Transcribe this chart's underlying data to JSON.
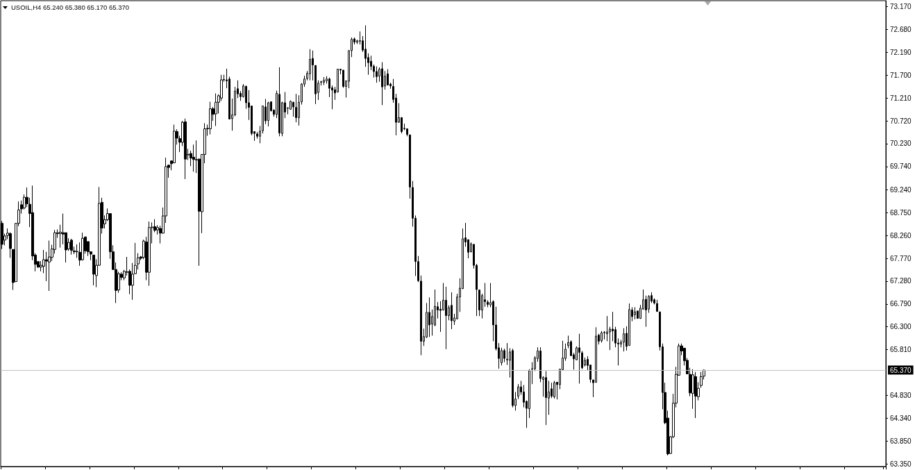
{
  "chart_data": {
    "type": "candlestick",
    "title": "USOIL,H4 65.240 65.380 65.170 65.370",
    "color": "#000000",
    "tick_labels": "y",
    "categories": [
      null,
      null,
      null,
      null,
      null,
      null,
      null,
      null,
      null,
      null,
      null,
      null,
      null,
      null,
      null,
      null,
      null,
      null,
      null,
      null,
      null,
      null,
      null,
      null,
      null,
      null,
      null,
      null,
      null,
      null,
      null,
      null,
      null,
      null,
      null,
      null,
      null,
      null,
      null,
      null,
      null,
      null,
      null,
      null,
      null,
      null,
      null,
      null,
      null,
      null,
      null,
      null,
      null,
      null,
      null,
      null,
      null,
      null,
      null,
      null,
      null,
      null,
      null,
      null,
      null,
      null,
      null,
      null,
      null,
      null,
      null,
      null,
      null,
      null,
      null,
      null,
      null,
      null,
      null,
      null,
      null,
      null,
      null,
      null,
      null,
      null,
      null,
      null,
      null,
      null,
      null,
      null,
      null,
      null,
      null,
      null,
      null,
      null,
      null,
      null,
      null,
      null,
      null,
      null,
      null,
      null,
      null,
      null,
      null,
      null,
      null,
      null,
      null,
      null,
      null,
      null,
      null,
      null,
      null,
      null,
      null,
      null,
      null,
      null,
      null,
      null,
      null,
      null,
      null,
      null,
      null,
      null,
      null,
      null,
      null,
      null,
      null,
      null,
      null,
      null,
      null,
      null,
      null,
      null,
      null,
      null,
      null,
      null,
      null,
      null,
      null,
      null,
      null,
      null,
      null,
      null,
      null,
      null,
      null,
      null,
      null,
      null,
      null,
      null,
      null,
      null,
      null,
      null,
      null,
      null,
      null,
      null,
      null,
      null,
      null,
      null,
      null,
      null,
      null,
      null,
      null,
      null,
      null,
      null,
      null,
      null,
      null,
      null,
      null,
      null,
      null,
      null,
      null,
      null,
      null,
      null,
      null,
      null,
      null,
      null,
      null,
      null,
      null,
      null,
      null,
      null,
      null,
      null,
      null,
      null,
      null,
      null,
      null,
      null,
      null,
      null,
      null,
      null,
      null,
      null,
      null,
      null,
      null,
      null,
      null,
      null,
      null,
      null,
      null,
      null,
      null,
      null,
      null,
      null,
      null,
      null,
      null,
      null,
      null,
      null,
      null,
      null,
      null,
      null,
      null,
      null,
      null,
      null,
      null,
      null,
      null,
      null,
      null,
      null,
      null,
      null,
      null,
      null,
      null,
      null,
      null,
      null,
      null,
      null,
      null,
      null,
      null,
      null,
      null,
      null,
      null,
      null,
      null,
      null,
      null,
      null,
      null,
      null,
      null,
      null,
      null,
      null,
      null,
      null,
      null,
      null,
      null,
      null,
      null,
      null,
      null,
      null,
      null,
      null,
      null,
      null,
      null,
      null,
      null,
      null,
      null,
      null,
      null,
      null,
      null,
      null,
      null,
      null,
      null,
      null,
      null,
      null,
      null,
      null,
      null,
      null,
      null,
      null,
      null
    ],
    "ohlc": [
      [
        68.52,
        68.57,
        67.97,
        68.07
      ],
      [
        68.16,
        68.3,
        68.05,
        68.25
      ],
      [
        68.26,
        68.41,
        68.18,
        68.31
      ],
      [
        68.3,
        68.33,
        67.78,
        67.98
      ],
      [
        67.96,
        67.96,
        67.09,
        67.25
      ],
      [
        67.27,
        68.53,
        67.26,
        68.52
      ],
      [
        68.52,
        68.99,
        68.46,
        68.81
      ],
      [
        68.92,
        69.01,
        68.73,
        68.83
      ],
      [
        68.85,
        69.14,
        68.82,
        69.08
      ],
      [
        69.08,
        69.29,
        68.87,
        68.94
      ],
      [
        68.93,
        69.07,
        68.44,
        68.73
      ],
      [
        68.75,
        69.33,
        67.73,
        67.82
      ],
      [
        67.84,
        67.88,
        67.49,
        67.64
      ],
      [
        67.7,
        67.7,
        67.57,
        67.58
      ],
      [
        67.58,
        67.71,
        67.49,
        67.62
      ],
      [
        67.6,
        67.95,
        67.45,
        67.74
      ],
      [
        67.74,
        67.91,
        67.28,
        67.71
      ],
      [
        67.69,
        68.15,
        67.07,
        67.8
      ],
      [
        67.79,
        68.06,
        67.71,
        67.97
      ],
      [
        67.96,
        68.38,
        67.87,
        68.32
      ],
      [
        68.3,
        68.39,
        68.21,
        68.32
      ],
      [
        68.3,
        68.49,
        68.0,
        68.33
      ],
      [
        68.32,
        68.73,
        68.07,
        68.29
      ],
      [
        68.32,
        68.32,
        67.68,
        67.95
      ],
      [
        67.97,
        68.2,
        67.93,
        68.11
      ],
      [
        68.16,
        68.19,
        67.85,
        67.94
      ],
      [
        67.93,
        68.02,
        67.86,
        67.91
      ],
      [
        67.91,
        68.07,
        67.78,
        67.92
      ],
      [
        67.9,
        68.11,
        67.61,
        67.73
      ],
      [
        67.74,
        68.32,
        67.72,
        68.2
      ],
      [
        68.23,
        68.23,
        67.87,
        67.93
      ],
      [
        68.13,
        68.13,
        67.82,
        67.91
      ],
      [
        67.91,
        67.92,
        67.73,
        67.86
      ],
      [
        67.84,
        67.84,
        67.19,
        67.43
      ],
      [
        67.4,
        67.75,
        67.15,
        67.62
      ],
      [
        67.62,
        69.3,
        67.61,
        68.95
      ],
      [
        68.97,
        69.07,
        68.3,
        68.42
      ],
      [
        68.51,
        68.69,
        68.41,
        68.6
      ],
      [
        68.6,
        68.84,
        68.57,
        68.73
      ],
      [
        68.73,
        68.73,
        67.76,
        67.91
      ],
      [
        67.91,
        68.05,
        67.52,
        67.53
      ],
      [
        67.53,
        67.68,
        66.81,
        67.08
      ],
      [
        67.09,
        67.48,
        67.03,
        67.44
      ],
      [
        67.43,
        67.47,
        67.3,
        67.36
      ],
      [
        67.35,
        67.52,
        67.3,
        67.49
      ],
      [
        67.47,
        67.8,
        67.4,
        67.48
      ],
      [
        67.49,
        67.53,
        67.0,
        67.19
      ],
      [
        67.19,
        67.67,
        66.88,
        67.43
      ],
      [
        67.44,
        68.1,
        67.43,
        67.62
      ],
      [
        67.65,
        67.88,
        67.53,
        67.78
      ],
      [
        67.8,
        67.82,
        67.73,
        67.77
      ],
      [
        67.79,
        68.17,
        67.75,
        68.14
      ],
      [
        68.12,
        68.23,
        67.3,
        67.47
      ],
      [
        67.47,
        68.56,
        67.18,
        68.43
      ],
      [
        68.43,
        68.54,
        68.09,
        68.44
      ],
      [
        68.45,
        68.61,
        68.33,
        68.37
      ],
      [
        68.38,
        68.48,
        68.28,
        68.43
      ],
      [
        68.41,
        68.47,
        68.09,
        68.31
      ],
      [
        68.31,
        68.86,
        68.3,
        68.68
      ],
      [
        68.68,
        69.93,
        68.53,
        69.74
      ],
      [
        69.77,
        69.78,
        69.5,
        69.72
      ],
      [
        69.86,
        69.87,
        69.66,
        69.8
      ],
      [
        69.82,
        70.64,
        69.81,
        70.5
      ],
      [
        70.49,
        70.54,
        70.21,
        70.35
      ],
      [
        70.34,
        70.4,
        70.05,
        70.26
      ],
      [
        70.26,
        70.72,
        70.18,
        70.69
      ],
      [
        70.7,
        70.77,
        69.47,
        69.9
      ],
      [
        69.99,
        70.12,
        69.88,
        70.0
      ],
      [
        70.02,
        70.08,
        69.75,
        69.92
      ],
      [
        69.94,
        70.21,
        69.63,
        69.89
      ],
      [
        69.89,
        70.3,
        69.6,
        69.88
      ],
      [
        69.9,
        69.91,
        67.61,
        68.78
      ],
      [
        68.77,
        70.0,
        68.31,
        70.0
      ],
      [
        70.0,
        70.67,
        69.81,
        70.55
      ],
      [
        70.55,
        70.64,
        70.4,
        70.56
      ],
      [
        70.55,
        71.13,
        70.43,
        70.98
      ],
      [
        70.98,
        71.02,
        70.72,
        70.86
      ],
      [
        70.87,
        71.31,
        70.61,
        71.12
      ],
      [
        71.12,
        71.29,
        70.88,
        71.26
      ],
      [
        71.21,
        71.71,
        71.15,
        71.6
      ],
      [
        71.61,
        71.71,
        71.56,
        71.6
      ],
      [
        71.6,
        71.84,
        71.42,
        71.58
      ],
      [
        71.62,
        71.67,
        70.75,
        70.76
      ],
      [
        70.77,
        71.2,
        70.51,
        70.85
      ],
      [
        70.85,
        71.45,
        70.82,
        71.36
      ],
      [
        71.41,
        71.59,
        71.21,
        71.3
      ],
      [
        71.31,
        71.36,
        71.15,
        71.24
      ],
      [
        71.24,
        71.51,
        71.22,
        71.47
      ],
      [
        71.46,
        71.48,
        70.98,
        71.11
      ],
      [
        71.11,
        71.38,
        70.74,
        71.01
      ],
      [
        71.04,
        71.04,
        70.41,
        70.45
      ],
      [
        70.49,
        70.49,
        70.29,
        70.45
      ],
      [
        70.44,
        70.48,
        70.34,
        70.39
      ],
      [
        70.39,
        70.61,
        70.24,
        70.5
      ],
      [
        70.51,
        71.04,
        70.45,
        71.04
      ],
      [
        71.02,
        71.19,
        70.65,
        70.72
      ],
      [
        70.73,
        71.13,
        70.6,
        71.11
      ],
      [
        71.13,
        71.13,
        70.92,
        70.94
      ],
      [
        70.95,
        70.97,
        70.81,
        70.86
      ],
      [
        70.86,
        71.37,
        70.78,
        71.31
      ],
      [
        71.29,
        71.87,
        70.39,
        70.46
      ],
      [
        70.45,
        71.13,
        70.39,
        71.11
      ],
      [
        71.11,
        71.34,
        70.78,
        70.91
      ],
      [
        70.99,
        71.01,
        70.86,
        71.0
      ],
      [
        70.97,
        71.16,
        70.96,
        71.14
      ],
      [
        71.12,
        71.13,
        70.81,
        71.02
      ],
      [
        71.01,
        71.3,
        70.69,
        70.79
      ],
      [
        70.79,
        71.27,
        70.62,
        71.12
      ],
      [
        71.13,
        71.53,
        71.07,
        71.51
      ],
      [
        71.51,
        71.69,
        71.45,
        71.62
      ],
      [
        71.63,
        71.79,
        71.59,
        71.74
      ],
      [
        71.73,
        72.26,
        71.59,
        72.04
      ],
      [
        72.06,
        72.23,
        71.59,
        71.92
      ],
      [
        71.91,
        71.91,
        71.08,
        71.3
      ],
      [
        71.33,
        71.59,
        71.17,
        71.53
      ],
      [
        71.55,
        71.58,
        71.48,
        71.56
      ],
      [
        71.55,
        71.66,
        71.49,
        71.59
      ],
      [
        71.58,
        71.68,
        71.52,
        71.62
      ],
      [
        71.62,
        71.65,
        71.23,
        71.42
      ],
      [
        71.43,
        71.48,
        70.97,
        71.38
      ],
      [
        71.39,
        71.45,
        71.17,
        71.32
      ],
      [
        71.34,
        71.84,
        71.33,
        71.83
      ],
      [
        71.83,
        71.83,
        71.72,
        71.81
      ],
      [
        71.81,
        71.81,
        71.43,
        71.46
      ],
      [
        71.46,
        71.58,
        71.22,
        71.58
      ],
      [
        71.57,
        72.23,
        71.42,
        72.23
      ],
      [
        72.23,
        72.51,
        72.09,
        72.47
      ],
      [
        72.48,
        72.51,
        72.36,
        72.41
      ],
      [
        72.41,
        72.46,
        72.37,
        72.44
      ],
      [
        72.43,
        72.64,
        72.36,
        72.44
      ],
      [
        72.44,
        72.54,
        72.2,
        72.24
      ],
      [
        72.26,
        72.77,
        71.88,
        72.06
      ],
      [
        72.08,
        72.17,
        71.71,
        71.97
      ],
      [
        72.0,
        72.12,
        71.81,
        71.89
      ],
      [
        71.89,
        71.93,
        71.65,
        71.78
      ],
      [
        71.78,
        71.89,
        71.54,
        71.67
      ],
      [
        71.68,
        71.87,
        71.56,
        71.83
      ],
      [
        71.84,
        71.98,
        71.06,
        71.45
      ],
      [
        71.47,
        71.79,
        71.39,
        71.68
      ],
      [
        71.73,
        71.83,
        71.48,
        71.49
      ],
      [
        71.51,
        71.54,
        71.41,
        71.47
      ],
      [
        71.46,
        71.62,
        71.11,
        71.18
      ],
      [
        71.21,
        71.3,
        70.41,
        70.69
      ],
      [
        70.69,
        71.1,
        70.68,
        70.79
      ],
      [
        70.79,
        70.8,
        70.45,
        70.49
      ],
      [
        70.56,
        70.66,
        70.52,
        70.55
      ],
      [
        70.55,
        70.55,
        70.39,
        70.43
      ],
      [
        70.42,
        70.42,
        69.05,
        69.3
      ],
      [
        69.29,
        69.43,
        68.45,
        68.63
      ],
      [
        68.63,
        68.69,
        67.39,
        67.7
      ],
      [
        67.7,
        67.82,
        67.26,
        67.29
      ],
      [
        67.28,
        67.4,
        65.69,
        65.99
      ],
      [
        65.99,
        66.26,
        65.89,
        66.09
      ],
      [
        66.08,
        66.81,
        66.06,
        66.61
      ],
      [
        66.61,
        66.93,
        66.08,
        66.34
      ],
      [
        66.36,
        66.67,
        66.11,
        66.52
      ],
      [
        66.34,
        67.1,
        66.31,
        66.74
      ],
      [
        66.73,
        66.83,
        66.48,
        66.66
      ],
      [
        66.68,
        66.85,
        66.19,
        66.65
      ],
      [
        66.66,
        67.24,
        66.65,
        66.87
      ],
      [
        66.87,
        67.16,
        65.82,
        66.54
      ],
      [
        66.54,
        66.76,
        66.44,
        66.71
      ],
      [
        66.76,
        67.04,
        66.25,
        66.43
      ],
      [
        66.42,
        66.58,
        66.34,
        66.49
      ],
      [
        66.47,
        67.01,
        66.46,
        66.94
      ],
      [
        66.94,
        67.34,
        66.62,
        67.13
      ],
      [
        67.12,
        68.41,
        67.11,
        68.19
      ],
      [
        68.21,
        68.53,
        68.02,
        68.12
      ],
      [
        68.17,
        68.17,
        67.77,
        67.9
      ],
      [
        67.91,
        68.11,
        67.9,
        68.08
      ],
      [
        68.07,
        68.07,
        67.55,
        67.62
      ],
      [
        67.62,
        67.65,
        66.53,
        67.1
      ],
      [
        67.09,
        67.1,
        66.53,
        66.66
      ],
      [
        66.66,
        67.01,
        66.48,
        66.97
      ],
      [
        66.88,
        67.24,
        66.73,
        66.84
      ],
      [
        66.83,
        66.87,
        66.72,
        66.78
      ],
      [
        66.77,
        67.24,
        66.72,
        66.82
      ],
      [
        66.84,
        66.87,
        65.99,
        66.34
      ],
      [
        66.34,
        66.73,
        65.79,
        65.83
      ],
      [
        65.85,
        65.95,
        65.4,
        65.62
      ],
      [
        65.53,
        65.85,
        65.47,
        65.79
      ],
      [
        65.79,
        65.83,
        65.54,
        65.62
      ],
      [
        65.6,
        65.95,
        65.48,
        65.59
      ],
      [
        65.58,
        65.84,
        65.21,
        65.76
      ],
      [
        65.79,
        65.83,
        64.57,
        64.61
      ],
      [
        64.61,
        64.9,
        64.5,
        64.75
      ],
      [
        64.81,
        65.07,
        64.75,
        65.01
      ],
      [
        65.01,
        65.14,
        64.84,
        64.9
      ],
      [
        64.9,
        65.05,
        64.57,
        64.68
      ],
      [
        64.7,
        64.72,
        64.13,
        64.55
      ],
      [
        64.54,
        65.39,
        64.34,
        65.36
      ],
      [
        65.39,
        65.54,
        65.07,
        65.4
      ],
      [
        65.4,
        65.67,
        65.35,
        65.63
      ],
      [
        65.62,
        65.86,
        65.55,
        65.78
      ],
      [
        65.78,
        65.86,
        65.11,
        65.19
      ],
      [
        65.17,
        65.24,
        64.8,
        65.21
      ],
      [
        65.21,
        65.35,
        64.19,
        64.78
      ],
      [
        64.77,
        65.14,
        64.41,
        64.9
      ],
      [
        64.97,
        65.1,
        64.77,
        64.81
      ],
      [
        64.8,
        65.14,
        64.76,
        65.1
      ],
      [
        65.11,
        65.11,
        64.74,
        65.06
      ],
      [
        65.06,
        65.4,
        64.96,
        65.39
      ],
      [
        65.38,
        66.0,
        65.37,
        65.63
      ],
      [
        65.62,
        65.94,
        65.57,
        65.82
      ],
      [
        65.9,
        66.11,
        65.84,
        65.96
      ],
      [
        65.98,
        66.01,
        65.67,
        65.68
      ],
      [
        65.7,
        65.74,
        65.38,
        65.61
      ],
      [
        65.59,
        65.88,
        65.58,
        65.85
      ],
      [
        65.85,
        66.15,
        65.08,
        65.75
      ],
      [
        65.74,
        65.78,
        65.39,
        65.42
      ],
      [
        65.48,
        65.64,
        65.45,
        65.58
      ],
      [
        65.6,
        65.67,
        65.37,
        65.47
      ],
      [
        65.48,
        65.48,
        65.1,
        65.17
      ],
      [
        65.16,
        65.16,
        64.79,
        65.1
      ],
      [
        65.11,
        66.29,
        65.1,
        66.1
      ],
      [
        66.12,
        66.15,
        65.92,
        65.99
      ],
      [
        66.0,
        66.21,
        65.96,
        66.17
      ],
      [
        66.17,
        66.21,
        66.03,
        66.18
      ],
      [
        66.15,
        66.53,
        65.99,
        66.19
      ],
      [
        66.19,
        66.3,
        65.8,
        66.25
      ],
      [
        66.25,
        66.62,
        65.99,
        66.21
      ],
      [
        66.24,
        66.3,
        65.86,
        65.95
      ],
      [
        65.95,
        66.05,
        65.47,
        65.93
      ],
      [
        65.93,
        66.02,
        65.86,
        65.97
      ],
      [
        65.97,
        66.27,
        65.77,
        66.15
      ],
      [
        66.16,
        66.31,
        65.79,
        65.88
      ],
      [
        65.9,
        66.8,
        65.89,
        66.67
      ],
      [
        66.66,
        66.72,
        66.42,
        66.52
      ],
      [
        66.56,
        66.72,
        66.46,
        66.62
      ],
      [
        66.64,
        66.64,
        66.48,
        66.48
      ],
      [
        66.48,
        66.77,
        66.47,
        66.7
      ],
      [
        66.68,
        67.1,
        66.67,
        66.88
      ],
      [
        66.89,
        66.97,
        66.3,
        66.66
      ],
      [
        66.68,
        66.98,
        66.6,
        66.95
      ],
      [
        66.97,
        67.04,
        66.81,
        66.85
      ],
      [
        66.88,
        66.91,
        66.78,
        66.81
      ],
      [
        66.8,
        66.88,
        66.62,
        66.63
      ],
      [
        66.62,
        66.62,
        65.79,
        65.87
      ],
      [
        65.87,
        65.94,
        64.53,
        64.89
      ],
      [
        64.89,
        65.1,
        64.21,
        64.24
      ],
      [
        64.34,
        64.5,
        63.54,
        63.57
      ],
      [
        63.58,
        63.95,
        63.57,
        63.94
      ],
      [
        63.94,
        64.86,
        63.91,
        64.66
      ],
      [
        64.66,
        65.44,
        64.57,
        65.28
      ],
      [
        65.26,
        65.94,
        65.25,
        65.89
      ],
      [
        65.89,
        65.94,
        65.69,
        65.78
      ],
      [
        65.84,
        65.84,
        65.47,
        65.57
      ],
      [
        65.58,
        65.63,
        65.28,
        65.29
      ],
      [
        65.28,
        65.42,
        64.81,
        64.88
      ],
      [
        64.87,
        65.39,
        64.54,
        65.27
      ],
      [
        65.23,
        65.33,
        64.34,
        64.81
      ],
      [
        64.8,
        65.11,
        64.72,
        64.98
      ],
      [
        65.04,
        65.33,
        64.99,
        65.23
      ],
      [
        65.24,
        65.38,
        65.17,
        65.37
      ],
      null,
      null,
      null,
      null,
      null,
      null,
      null,
      null,
      null,
      null,
      null,
      null,
      null,
      null,
      null,
      null,
      null,
      null,
      null,
      null,
      null,
      null,
      null,
      null,
      null,
      null,
      null,
      null,
      null,
      null,
      null,
      null,
      null,
      null,
      null,
      null,
      null,
      null,
      null,
      null,
      null,
      null,
      null,
      null,
      null,
      null,
      null,
      null,
      null,
      null,
      null,
      null,
      null,
      null,
      null,
      null,
      null,
      null,
      null,
      null,
      null,
      null,
      null,
      null,
      null
    ],
    "ylim": [
      63.3,
      73.3
    ],
    "yticks": [
      {
        "value": 73.17,
        "label": "73.170"
      },
      {
        "value": 72.68,
        "label": "72.680"
      },
      {
        "value": 72.19,
        "label": "72.190"
      },
      {
        "value": 71.7,
        "label": "71.700"
      },
      {
        "value": 71.21,
        "label": "71.210"
      },
      {
        "value": 70.72,
        "label": "70.720"
      },
      {
        "value": 70.23,
        "label": "70.230"
      },
      {
        "value": 69.74,
        "label": "69.740"
      },
      {
        "value": 69.24,
        "label": "69.240"
      },
      {
        "value": 68.75,
        "label": "68.750"
      },
      {
        "value": 68.26,
        "label": "68.260"
      },
      {
        "value": 67.77,
        "label": "67.770"
      },
      {
        "value": 67.28,
        "label": "67.280"
      },
      {
        "value": 66.79,
        "label": "66.790"
      },
      {
        "value": 66.3,
        "label": "66.300"
      },
      {
        "value": 65.81,
        "label": "65.810"
      },
      {
        "value": 64.83,
        "label": "64.830"
      },
      {
        "value": 64.34,
        "label": "64.340"
      },
      {
        "value": 63.85,
        "label": "63.850"
      },
      {
        "value": 63.35,
        "label": "63.350"
      }
    ],
    "ref_lines": [
      {
        "axis": "y",
        "value": 65.37,
        "label": "65.370",
        "color": "#c0c0c0"
      }
    ]
  }
}
